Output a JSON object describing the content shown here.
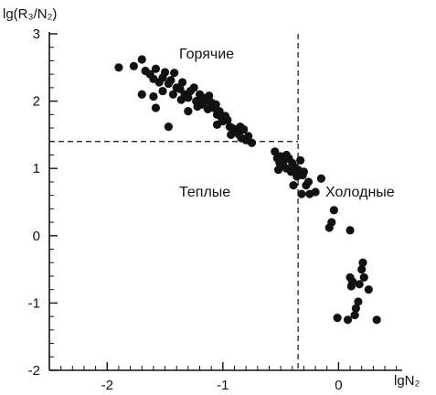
{
  "chart_data": {
    "type": "scatter",
    "title": "",
    "ylabel": "lg(R₃/N₂)",
    "xlabel": "lgN₂",
    "xlim": [
      -2.5,
      0.55
    ],
    "ylim": [
      -2,
      3
    ],
    "xticks": [
      -2,
      -1,
      0
    ],
    "xtick_labels": [
      "-2",
      "-1",
      "0"
    ],
    "yticks": [
      -2,
      -1,
      0,
      1,
      2,
      3
    ],
    "ytick_labels": [
      "-2",
      "-1",
      "0",
      "1",
      "2",
      "3"
    ],
    "grid": false,
    "annotations": [
      "Горячие",
      "Теплые",
      "Холодные"
    ],
    "threshold_x": -0.35,
    "threshold_y": 1.4,
    "marker_color": "#111111",
    "series": [
      {
        "points": [
          [
            -1.9,
            2.5
          ],
          [
            -1.77,
            2.52
          ],
          [
            -1.7,
            2.62
          ],
          [
            -1.67,
            2.45
          ],
          [
            -1.63,
            2.4
          ],
          [
            -1.6,
            2.33
          ],
          [
            -1.58,
            2.48
          ],
          [
            -1.55,
            2.28
          ],
          [
            -1.52,
            2.35
          ],
          [
            -1.5,
            2.43
          ],
          [
            -1.47,
            2.26
          ],
          [
            -1.45,
            2.31
          ],
          [
            -1.42,
            2.42
          ],
          [
            -1.4,
            2.2
          ],
          [
            -1.37,
            2.18
          ],
          [
            -1.35,
            2.28
          ],
          [
            -1.33,
            2.1
          ],
          [
            -1.3,
            2.05
          ],
          [
            -1.28,
            2.15
          ],
          [
            -1.25,
            2.2
          ],
          [
            -1.23,
            2.0
          ],
          [
            -1.22,
            1.92
          ],
          [
            -1.2,
            2.1
          ],
          [
            -1.18,
            1.95
          ],
          [
            -1.17,
            2.05
          ],
          [
            -1.15,
            2.0
          ],
          [
            -1.13,
            1.88
          ],
          [
            -1.12,
            2.08
          ],
          [
            -1.1,
            1.98
          ],
          [
            -1.08,
            1.9
          ],
          [
            -1.06,
            1.95
          ],
          [
            -1.05,
            1.8
          ],
          [
            -1.03,
            1.85
          ],
          [
            -1.01,
            1.75
          ],
          [
            -0.98,
            1.78
          ],
          [
            -0.96,
            1.72
          ],
          [
            -0.94,
            1.62
          ],
          [
            -0.92,
            1.6
          ],
          [
            -0.9,
            1.55
          ],
          [
            -0.88,
            1.58
          ],
          [
            -0.86,
            1.5
          ],
          [
            -0.84,
            1.45
          ],
          [
            -0.82,
            1.58
          ],
          [
            -0.8,
            1.42
          ],
          [
            -0.78,
            1.48
          ],
          [
            -0.75,
            1.38
          ],
          [
            -1.3,
            1.85
          ],
          [
            -1.47,
            1.62
          ],
          [
            -1.6,
            2.07
          ],
          [
            -1.58,
            1.9
          ],
          [
            -1.7,
            2.1
          ],
          [
            -1.52,
            2.15
          ],
          [
            -1.43,
            2.1
          ],
          [
            -1.36,
            2.02
          ],
          [
            -1.18,
            1.98
          ],
          [
            -1.05,
            1.65
          ],
          [
            -1.0,
            1.7
          ],
          [
            -0.93,
            1.5
          ],
          [
            -0.85,
            1.62
          ],
          [
            -0.55,
            1.25
          ],
          [
            -0.53,
            1.15
          ],
          [
            -0.51,
            1.08
          ],
          [
            -0.5,
            1.18
          ],
          [
            -0.48,
            1.05
          ],
          [
            -0.47,
            1.12
          ],
          [
            -0.45,
            1.0
          ],
          [
            -0.43,
            1.15
          ],
          [
            -0.41,
            0.95
          ],
          [
            -0.4,
            1.08
          ],
          [
            -0.38,
            1.02
          ],
          [
            -0.36,
            0.88
          ],
          [
            -0.35,
            0.98
          ],
          [
            -0.33,
            1.12
          ],
          [
            -0.31,
            0.9
          ],
          [
            -0.3,
            0.95
          ],
          [
            -0.28,
            0.75
          ],
          [
            -0.26,
            0.8
          ],
          [
            -0.25,
            0.62
          ],
          [
            -0.32,
            0.62
          ],
          [
            -0.2,
            0.65
          ],
          [
            -0.15,
            0.85
          ],
          [
            -0.52,
            0.98
          ],
          [
            -0.45,
            1.2
          ],
          [
            -0.39,
            0.75
          ],
          [
            -0.08,
            0.12
          ],
          [
            -0.06,
            0.2
          ],
          [
            -0.04,
            0.38
          ],
          [
            0.1,
            0.08
          ],
          [
            0.1,
            -0.62
          ],
          [
            0.11,
            -0.75
          ],
          [
            0.12,
            -0.68
          ],
          [
            0.14,
            -1.18
          ],
          [
            0.15,
            -1.08
          ],
          [
            0.17,
            -0.98
          ],
          [
            0.18,
            -0.72
          ],
          [
            0.2,
            -0.5
          ],
          [
            0.21,
            -0.4
          ],
          [
            0.22,
            -0.62
          ],
          [
            0.26,
            -0.8
          ],
          [
            0.08,
            -1.25
          ],
          [
            0.33,
            -1.25
          ],
          [
            -0.01,
            -1.22
          ]
        ]
      }
    ]
  }
}
